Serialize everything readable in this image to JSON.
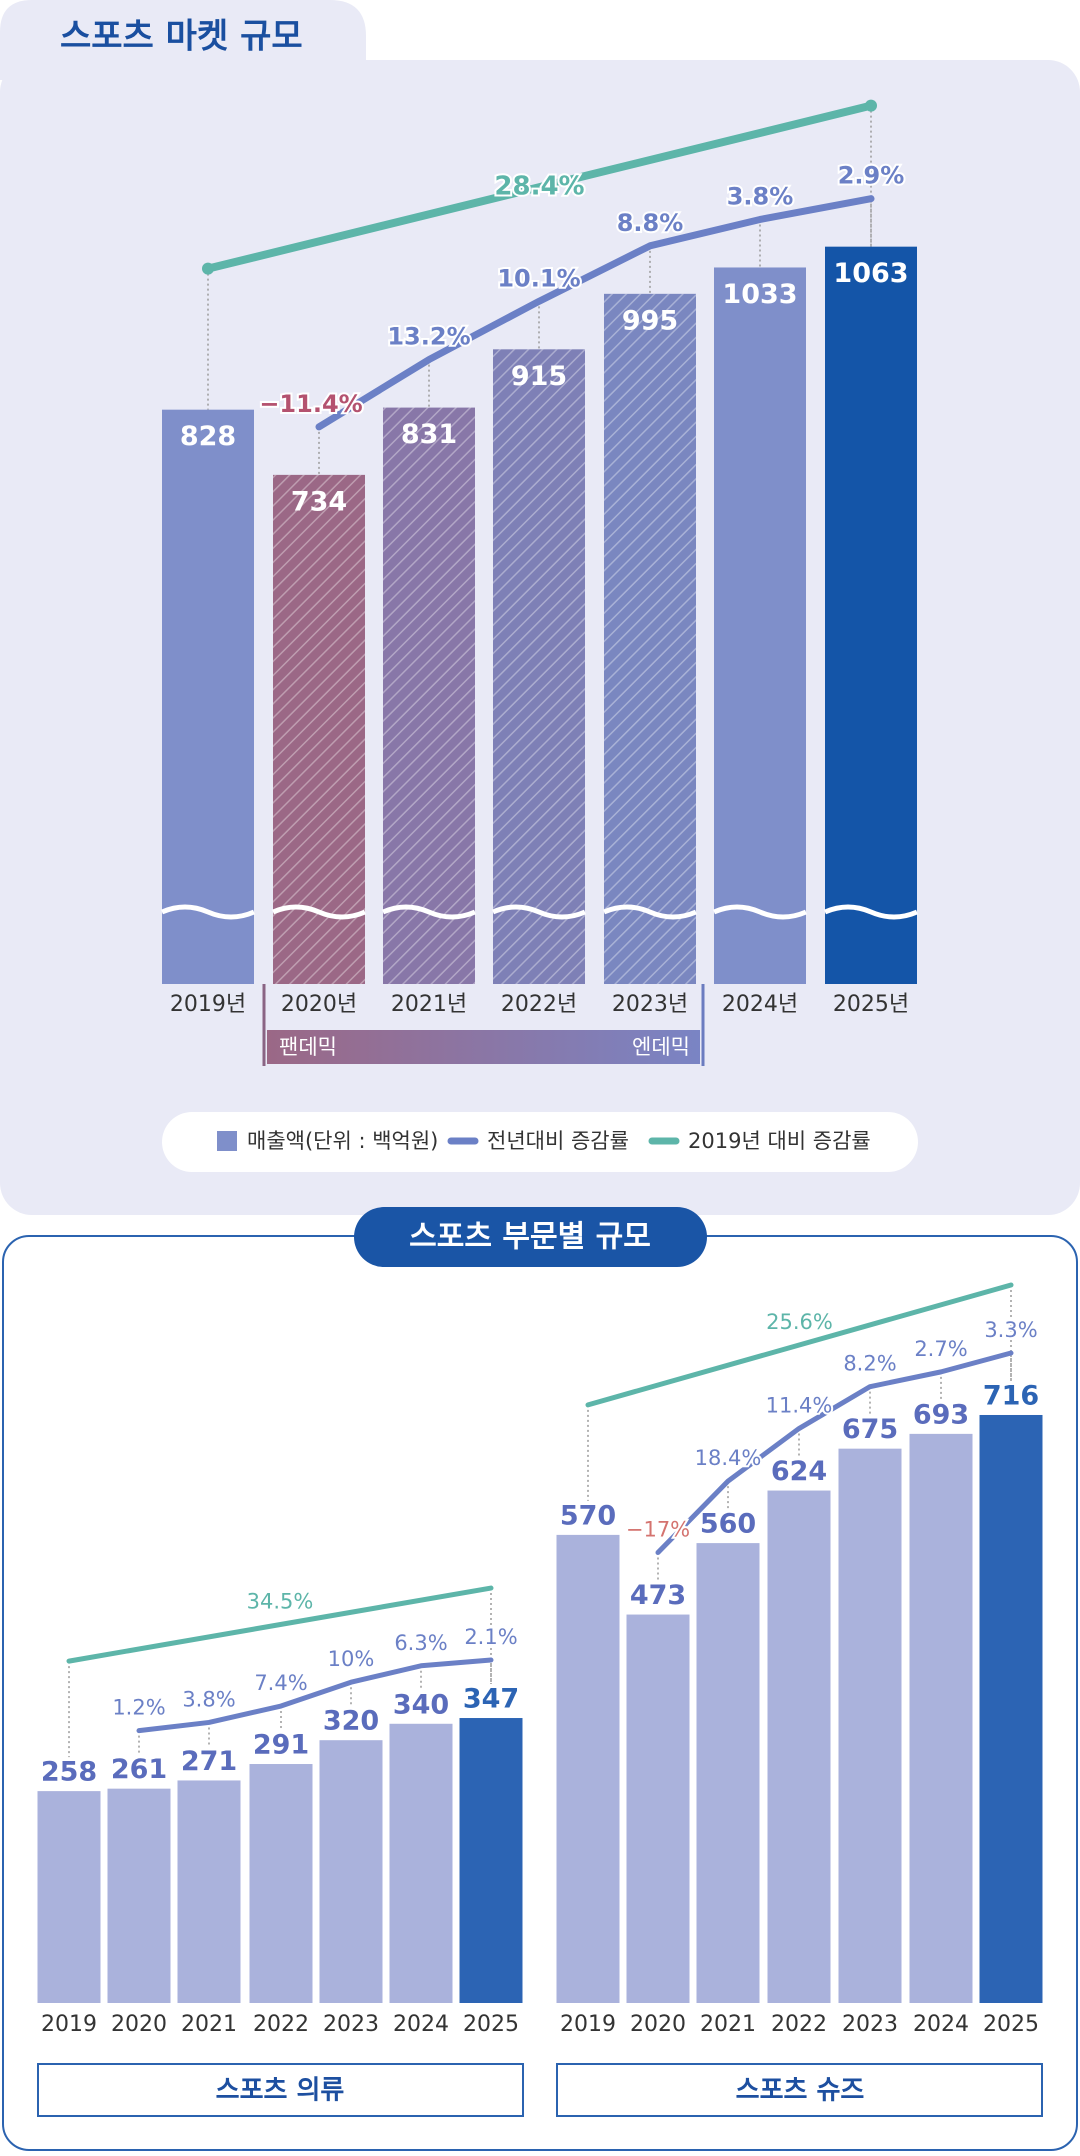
{
  "chart_data": [
    {
      "type": "bar",
      "title": "스포츠 마켓 규모",
      "categories": [
        "2019년",
        "2020년",
        "2021년",
        "2022년",
        "2023년",
        "2024년",
        "2025년"
      ],
      "series": [
        {
          "name": "매출액(단위 : 백억원)",
          "type": "bar",
          "values": [
            828,
            734,
            831,
            915,
            995,
            1033,
            1063
          ],
          "colors": [
            "#7f8fca",
            "#9b6886",
            "#8877a8",
            "#7e80b6",
            "#7a87c0",
            "#7f8fca",
            "#1455a8"
          ],
          "hatched": [
            false,
            true,
            true,
            true,
            true,
            false,
            false
          ]
        },
        {
          "name": "전년대비 증감률",
          "type": "line",
          "color": "#6b80c6",
          "negative_color": "#b4526f",
          "values": [
            null,
            -11.4,
            13.2,
            10.1,
            8.8,
            3.8,
            2.9
          ],
          "value_labels": [
            null,
            "−11.4%",
            "13.2%",
            "10.1%",
            "8.8%",
            "3.8%",
            "2.9%"
          ]
        },
        {
          "name": "2019년 대비 증감률",
          "type": "line",
          "color": "#5db5a9",
          "values": [
            null,
            null,
            null,
            null,
            null,
            null,
            28.4
          ],
          "value_labels": [
            null,
            null,
            null,
            null,
            null,
            null,
            "28.4%"
          ]
        }
      ],
      "ylim": [
        0,
        1100
      ],
      "legend": "bottom",
      "annotations": {
        "period_start": "팬데믹",
        "period_end": "엔데믹"
      }
    },
    {
      "type": "bar",
      "title": "스포츠 의류",
      "categories": [
        "2019",
        "2020",
        "2021",
        "2022",
        "2023",
        "2024",
        "2025"
      ],
      "series": [
        {
          "type": "bar",
          "values": [
            258,
            261,
            271,
            291,
            320,
            340,
            347
          ],
          "colors": [
            "#aab2dc",
            "#aab2dc",
            "#aab2dc",
            "#aab2dc",
            "#aab2dc",
            "#aab2dc",
            "#2c64b4"
          ]
        },
        {
          "type": "line",
          "color": "#6b80c6",
          "negative_color": "#d4736f",
          "values": [
            null,
            1.2,
            3.8,
            7.4,
            10,
            6.3,
            2.1
          ],
          "value_labels": [
            null,
            "1.2%",
            "3.8%",
            "7.4%",
            "10%",
            "6.3%",
            "2.1%"
          ]
        },
        {
          "type": "line",
          "color": "#5db5a9",
          "values": [
            null,
            null,
            null,
            null,
            null,
            null,
            34.5
          ],
          "value_labels": [
            null,
            null,
            null,
            null,
            null,
            null,
            "34.5%"
          ]
        }
      ],
      "ylim": [
        0,
        800
      ]
    },
    {
      "type": "bar",
      "title": "스포츠 슈즈",
      "categories": [
        "2019",
        "2020",
        "2021",
        "2022",
        "2023",
        "2024",
        "2025"
      ],
      "series": [
        {
          "type": "bar",
          "values": [
            570,
            473,
            560,
            624,
            675,
            693,
            716
          ],
          "colors": [
            "#aab2dc",
            "#aab2dc",
            "#aab2dc",
            "#aab2dc",
            "#aab2dc",
            "#aab2dc",
            "#2c64b4"
          ]
        },
        {
          "type": "line",
          "color": "#6b80c6",
          "negative_color": "#d4736f",
          "values": [
            null,
            -17,
            18.4,
            11.4,
            8.2,
            2.7,
            3.3
          ],
          "value_labels": [
            null,
            "−17%",
            "18.4%",
            "11.4%",
            "8.2%",
            "2.7%",
            "3.3%"
          ]
        },
        {
          "type": "line",
          "color": "#5db5a9",
          "values": [
            null,
            null,
            null,
            null,
            null,
            null,
            25.6
          ],
          "value_labels": [
            null,
            null,
            null,
            null,
            null,
            null,
            "25.6%"
          ]
        }
      ],
      "ylim": [
        0,
        800
      ]
    }
  ],
  "section_title": "스포츠 부문별 규모"
}
